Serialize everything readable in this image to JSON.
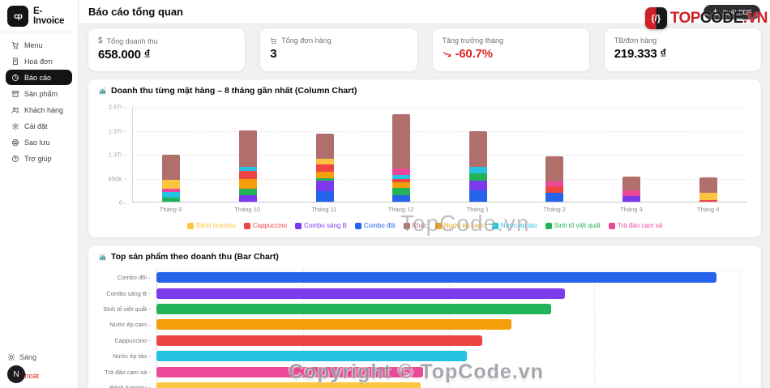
{
  "app": {
    "name": "E-Invoice",
    "logo_glyph": "cp"
  },
  "sidebar": {
    "active_index": 2,
    "items": [
      {
        "name": "menu",
        "label": "Menu",
        "icon": "cart-icon"
      },
      {
        "name": "hoa-don",
        "label": "Hoá đơn",
        "icon": "receipt-icon"
      },
      {
        "name": "bao-cao",
        "label": "Báo cáo",
        "icon": "pie-chart-icon"
      },
      {
        "name": "san-pham",
        "label": "Sản phẩm",
        "icon": "box-icon"
      },
      {
        "name": "khach-hang",
        "label": "Khách hàng",
        "icon": "users-icon"
      },
      {
        "name": "cai-dat",
        "label": "Cài đặt",
        "icon": "gear-icon"
      },
      {
        "name": "sao-luu",
        "label": "Sao lưu",
        "icon": "printer-icon"
      },
      {
        "name": "tro-giup",
        "label": "Trợ giúp",
        "icon": "help-icon"
      }
    ],
    "footer": {
      "theme_label": "Sáng",
      "avatar_initial": "N",
      "logout_label": "Thoát"
    }
  },
  "header": {
    "title": "Báo cáo tổng quan",
    "export_button": "Xuất PDF"
  },
  "stats": {
    "cards": [
      {
        "label": "Tổng doanh thu",
        "value": "658.000 ₫",
        "icon": "dollar-icon"
      },
      {
        "label": "Tổng đơn hàng",
        "value": "3",
        "icon": "cart-icon"
      },
      {
        "label": "Tăng trưởng tháng",
        "value": "-60.7%",
        "icon": "trending-down-icon",
        "negative": true
      },
      {
        "label": "TB/đơn hàng",
        "value": "219.333 ₫"
      }
    ]
  },
  "watermarks": {
    "center": "TopCode.vn",
    "copyright": "Copyright © TopCode.vn",
    "brand": {
      "icon_glyph": "{/}",
      "top": "TOP",
      "code": "CODE",
      "vn": ".VN"
    }
  },
  "chart_data": [
    {
      "type": "bar",
      "variant": "stacked-column",
      "title": "Doanh thu từng mặt hàng – 8 tháng gần nhất (Column Chart)",
      "categories": [
        "Tháng 9",
        "Tháng 10",
        "Tháng 11",
        "Tháng 12",
        "Tháng 1",
        "Tháng 2",
        "Tháng 3",
        "Tháng 4"
      ],
      "y_ticks": [
        "0",
        "650K",
        "1.3Tr",
        "1.9Tr",
        "2.6Tr"
      ],
      "ylim": [
        0,
        2600000
      ],
      "grid": true,
      "legend_position": "bottom",
      "legend_order": [
        "Bánh tiramisu",
        "Cappuccino",
        "Combo sáng B",
        "Combo đôi",
        "Khác",
        "Nước ép cam",
        "Nước ép táo",
        "Sinh tố việt quất",
        "Trà đào cam sả"
      ],
      "series": [
        {
          "name": "Combo đôi",
          "color": "#2563eb",
          "values": [
            0,
            0,
            285000,
            170000,
            310000,
            240000,
            0,
            0
          ]
        },
        {
          "name": "Combo sáng B",
          "color": "#7c3aed",
          "values": [
            0,
            180000,
            285000,
            0,
            270000,
            0,
            145000,
            0
          ]
        },
        {
          "name": "Sinh tố việt quất",
          "color": "#22b358",
          "values": [
            110000,
            180000,
            70000,
            215000,
            180000,
            0,
            0,
            0
          ]
        },
        {
          "name": "Nước ép cam",
          "color": "#f59e0b",
          "values": [
            0,
            250000,
            180000,
            145000,
            0,
            0,
            0,
            0
          ]
        },
        {
          "name": "Cappuccino",
          "color": "#ef4444",
          "values": [
            0,
            235000,
            195000,
            85000,
            0,
            180000,
            0,
            40000
          ]
        },
        {
          "name": "Nước ép táo",
          "color": "#25c2e3",
          "values": [
            150000,
            100000,
            0,
            115000,
            180000,
            0,
            0,
            0
          ]
        },
        {
          "name": "Trà đào cam sả",
          "color": "#ec4899",
          "values": [
            85000,
            0,
            0,
            170000,
            0,
            130000,
            165000,
            0
          ]
        },
        {
          "name": "Bánh tiramisu",
          "color": "#fcc540",
          "values": [
            260000,
            0,
            165000,
            0,
            0,
            0,
            0,
            195000
          ]
        },
        {
          "name": "Khác",
          "color": "#b16f6b",
          "values": [
            680000,
            990000,
            680000,
            1490000,
            985000,
            690000,
            380000,
            423000
          ]
        }
      ]
    },
    {
      "type": "bar",
      "variant": "horizontal",
      "title": "Top sản phẩm theo doanh thu (Bar Chart)",
      "categories": [
        "Combo đôi",
        "Combo sáng B",
        "Sinh tố việt quất",
        "Nước ép cam",
        "Cappuccino",
        "Nước ép táo",
        "Trà đào cam sả",
        "Bánh tiramisu"
      ],
      "values": [
        960000,
        700000,
        676000,
        608000,
        558000,
        532000,
        457000,
        453000
      ],
      "colors": [
        "#2563eb",
        "#7c3aed",
        "#22b358",
        "#f59e0b",
        "#ef4444",
        "#25c2e3",
        "#ec4899",
        "#fcc540"
      ],
      "xlim": [
        0,
        1000000
      ],
      "grid": true
    }
  ]
}
